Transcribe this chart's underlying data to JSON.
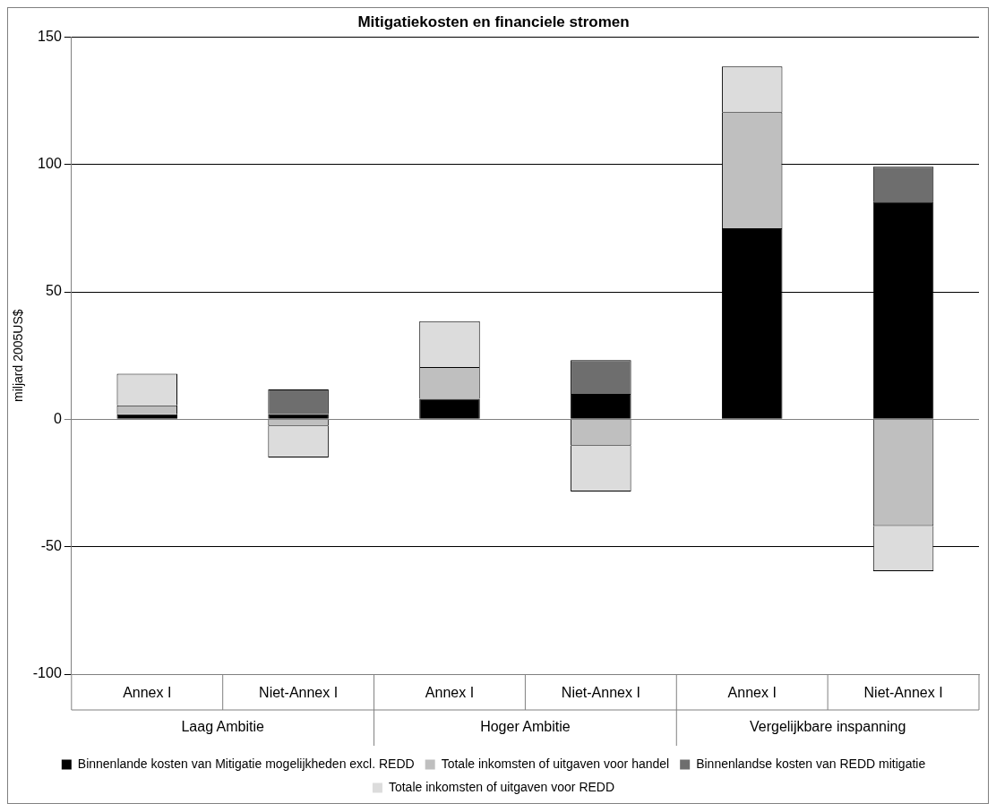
{
  "chart_data": {
    "type": "bar",
    "title": "Mitigatiekosten en financiele stromen",
    "ylabel": "miljard 2005US$",
    "categories": [
      "Annex I",
      "Niet-Annex I",
      "Annex I",
      "Niet-Annex I",
      "Annex I",
      "Niet-Annex I"
    ],
    "annotations": [
      "Laag Ambitie",
      "Hoger Ambitie",
      "Vergelijkbare inspanning"
    ],
    "stacked": true,
    "series": [
      {
        "name": "Binnenlande kosten van Mitigatie mogelijkheden excl. REDD",
        "color": "#000000",
        "values": [
          2,
          2,
          8,
          10,
          75,
          85.4
        ]
      },
      {
        "name": "Totale inkomsten of uitgaven voor handel",
        "color": "#bfbfbf",
        "values": [
          3.5,
          -2.6,
          12.5,
          -10.3,
          45.5,
          -41.9
        ]
      },
      {
        "name": "Binnenlandse kosten van REDD mitigatie",
        "color": "#6e6e6e",
        "values": [
          null,
          9.7,
          null,
          13.2,
          null,
          13.7
        ]
      },
      {
        "name": "Totale inkomsten of uitgaven voor REDD",
        "color": "#dcdcdc",
        "values": [
          12.4,
          -12.4,
          18,
          -18,
          18,
          -17.7
        ]
      }
    ],
    "ylim": [
      -100,
      150
    ],
    "yticks": [
      -100,
      -50,
      0,
      50,
      100,
      150
    ],
    "grid": "y",
    "legend": "bottom"
  }
}
